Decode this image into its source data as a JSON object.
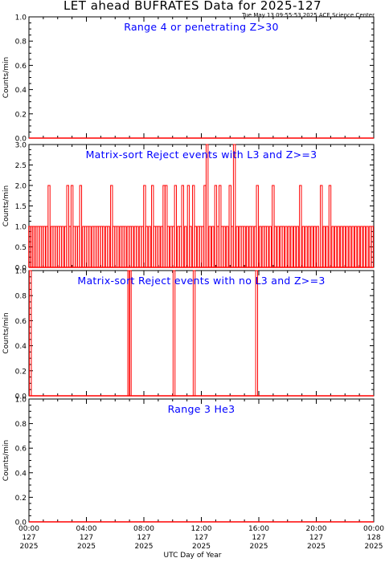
{
  "header": {
    "title": "LET ahead BUFRATES Data for 2025-127",
    "timestamp": "Tue May 13 09:55:53 2025 ACE Science Center"
  },
  "xaxis_label": "UTC Day of Year",
  "colors": {
    "data": "#ff0000",
    "panel_title": "#0000ff",
    "axes": "#000000"
  },
  "chart_data": [
    {
      "type": "line",
      "title": "Range 4 or  penetrating Z>30",
      "ylabel": "Counts/min",
      "ylim": [
        0,
        1.0
      ],
      "yticks": [
        "0.0",
        "0.2",
        "0.4",
        "0.6",
        "0.8",
        "1.0"
      ],
      "yticks_vals": [
        0,
        0.2,
        0.4,
        0.6,
        0.8,
        1.0
      ],
      "xlim": [
        0,
        24
      ],
      "series": [
        {
          "x": [
            0,
            24
          ],
          "y": [
            0,
            0
          ]
        }
      ]
    },
    {
      "type": "line",
      "title": "Matrix-sort Reject events with L3 and Z>=3",
      "ylabel": "Counts/min",
      "ylim": [
        0,
        3.0
      ],
      "yticks": [
        "0.0",
        "0.5",
        "1.0",
        "1.5",
        "2.0",
        "2.5",
        "3.0"
      ],
      "yticks_vals": [
        0,
        0.5,
        1.0,
        1.5,
        2.0,
        2.5,
        3.0
      ],
      "xlim": [
        0,
        24
      ],
      "baseline_value": 0,
      "spikes": [
        {
          "x": 0.05,
          "y": 1
        },
        {
          "x": 0.17,
          "y": 1
        },
        {
          "x": 0.3,
          "y": 1
        },
        {
          "x": 0.42,
          "y": 1
        },
        {
          "x": 0.55,
          "y": 1
        },
        {
          "x": 0.68,
          "y": 1
        },
        {
          "x": 0.82,
          "y": 1
        },
        {
          "x": 0.95,
          "y": 1
        },
        {
          "x": 1.08,
          "y": 1
        },
        {
          "x": 1.25,
          "y": 1
        },
        {
          "x": 1.4,
          "y": 2
        },
        {
          "x": 1.6,
          "y": 1
        },
        {
          "x": 1.75,
          "y": 1
        },
        {
          "x": 1.9,
          "y": 1
        },
        {
          "x": 2.05,
          "y": 1
        },
        {
          "x": 2.2,
          "y": 1
        },
        {
          "x": 2.35,
          "y": 1
        },
        {
          "x": 2.55,
          "y": 1
        },
        {
          "x": 2.7,
          "y": 2
        },
        {
          "x": 2.85,
          "y": 1
        },
        {
          "x": 3.0,
          "y": 2
        },
        {
          "x": 3.15,
          "y": 1
        },
        {
          "x": 3.3,
          "y": 1
        },
        {
          "x": 3.45,
          "y": 1
        },
        {
          "x": 3.6,
          "y": 2
        },
        {
          "x": 3.8,
          "y": 1
        },
        {
          "x": 3.95,
          "y": 1
        },
        {
          "x": 4.1,
          "y": 1
        },
        {
          "x": 4.25,
          "y": 1
        },
        {
          "x": 4.45,
          "y": 1
        },
        {
          "x": 4.6,
          "y": 1
        },
        {
          "x": 4.75,
          "y": 1
        },
        {
          "x": 4.9,
          "y": 1
        },
        {
          "x": 5.05,
          "y": 1
        },
        {
          "x": 5.2,
          "y": 1
        },
        {
          "x": 5.4,
          "y": 1
        },
        {
          "x": 5.55,
          "y": 1
        },
        {
          "x": 5.75,
          "y": 2
        },
        {
          "x": 5.9,
          "y": 1
        },
        {
          "x": 6.05,
          "y": 1
        },
        {
          "x": 6.2,
          "y": 1
        },
        {
          "x": 6.4,
          "y": 1
        },
        {
          "x": 6.55,
          "y": 1
        },
        {
          "x": 6.7,
          "y": 1
        },
        {
          "x": 6.9,
          "y": 1
        },
        {
          "x": 7.05,
          "y": 1
        },
        {
          "x": 7.2,
          "y": 1
        },
        {
          "x": 7.4,
          "y": 1
        },
        {
          "x": 7.55,
          "y": 1
        },
        {
          "x": 7.75,
          "y": 1
        },
        {
          "x": 7.9,
          "y": 1
        },
        {
          "x": 8.05,
          "y": 2
        },
        {
          "x": 8.2,
          "y": 1
        },
        {
          "x": 8.4,
          "y": 1
        },
        {
          "x": 8.6,
          "y": 2
        },
        {
          "x": 8.75,
          "y": 1
        },
        {
          "x": 8.9,
          "y": 1
        },
        {
          "x": 9.05,
          "y": 1
        },
        {
          "x": 9.25,
          "y": 1
        },
        {
          "x": 9.4,
          "y": 2
        },
        {
          "x": 9.55,
          "y": 2
        },
        {
          "x": 9.7,
          "y": 1
        },
        {
          "x": 9.9,
          "y": 1
        },
        {
          "x": 10.05,
          "y": 1
        },
        {
          "x": 10.2,
          "y": 2
        },
        {
          "x": 10.4,
          "y": 1
        },
        {
          "x": 10.55,
          "y": 1
        },
        {
          "x": 10.7,
          "y": 2
        },
        {
          "x": 10.9,
          "y": 1
        },
        {
          "x": 11.1,
          "y": 2
        },
        {
          "x": 11.25,
          "y": 1
        },
        {
          "x": 11.45,
          "y": 2
        },
        {
          "x": 11.6,
          "y": 1
        },
        {
          "x": 11.8,
          "y": 1
        },
        {
          "x": 11.95,
          "y": 1
        },
        {
          "x": 12.1,
          "y": 1
        },
        {
          "x": 12.25,
          "y": 2
        },
        {
          "x": 12.4,
          "y": 3
        },
        {
          "x": 12.6,
          "y": 1
        },
        {
          "x": 12.8,
          "y": 1
        },
        {
          "x": 13.0,
          "y": 2
        },
        {
          "x": 13.15,
          "y": 1
        },
        {
          "x": 13.3,
          "y": 2
        },
        {
          "x": 13.45,
          "y": 1
        },
        {
          "x": 13.6,
          "y": 1
        },
        {
          "x": 13.8,
          "y": 1
        },
        {
          "x": 14.0,
          "y": 2
        },
        {
          "x": 14.15,
          "y": 1
        },
        {
          "x": 14.3,
          "y": 3
        },
        {
          "x": 14.5,
          "y": 1
        },
        {
          "x": 14.7,
          "y": 1
        },
        {
          "x": 14.85,
          "y": 1
        },
        {
          "x": 15.0,
          "y": 1
        },
        {
          "x": 15.2,
          "y": 1
        },
        {
          "x": 15.4,
          "y": 1
        },
        {
          "x": 15.55,
          "y": 1
        },
        {
          "x": 15.75,
          "y": 1
        },
        {
          "x": 15.9,
          "y": 2
        },
        {
          "x": 16.1,
          "y": 1
        },
        {
          "x": 16.3,
          "y": 1
        },
        {
          "x": 16.45,
          "y": 1
        },
        {
          "x": 16.6,
          "y": 1
        },
        {
          "x": 16.8,
          "y": 1
        },
        {
          "x": 17.0,
          "y": 2
        },
        {
          "x": 17.15,
          "y": 1
        },
        {
          "x": 17.35,
          "y": 1
        },
        {
          "x": 17.55,
          "y": 1
        },
        {
          "x": 17.7,
          "y": 1
        },
        {
          "x": 17.9,
          "y": 1
        },
        {
          "x": 18.1,
          "y": 1
        },
        {
          "x": 18.3,
          "y": 1
        },
        {
          "x": 18.5,
          "y": 1
        },
        {
          "x": 18.7,
          "y": 1
        },
        {
          "x": 18.9,
          "y": 2
        },
        {
          "x": 19.1,
          "y": 1
        },
        {
          "x": 19.3,
          "y": 1
        },
        {
          "x": 19.5,
          "y": 1
        },
        {
          "x": 19.7,
          "y": 1
        },
        {
          "x": 19.9,
          "y": 1
        },
        {
          "x": 20.1,
          "y": 1
        },
        {
          "x": 20.35,
          "y": 2
        },
        {
          "x": 20.55,
          "y": 1
        },
        {
          "x": 20.75,
          "y": 1
        },
        {
          "x": 20.95,
          "y": 2
        },
        {
          "x": 21.15,
          "y": 1
        },
        {
          "x": 21.35,
          "y": 1
        },
        {
          "x": 21.55,
          "y": 1
        },
        {
          "x": 21.75,
          "y": 1
        },
        {
          "x": 21.95,
          "y": 1
        },
        {
          "x": 22.15,
          "y": 1
        },
        {
          "x": 22.35,
          "y": 1
        },
        {
          "x": 22.55,
          "y": 1
        },
        {
          "x": 22.75,
          "y": 1
        },
        {
          "x": 22.95,
          "y": 1
        },
        {
          "x": 23.15,
          "y": 1
        },
        {
          "x": 23.35,
          "y": 1
        },
        {
          "x": 23.55,
          "y": 1
        },
        {
          "x": 23.75,
          "y": 1
        },
        {
          "x": 23.9,
          "y": 1
        }
      ]
    },
    {
      "type": "line",
      "title": "Matrix-sort Reject events with no L3 and Z>=3",
      "ylabel": "Counts/min",
      "ylim": [
        0,
        1.0
      ],
      "yticks": [
        "0.0",
        "0.2",
        "0.4",
        "0.6",
        "0.8",
        "1.0"
      ],
      "yticks_vals": [
        0,
        0.2,
        0.4,
        0.6,
        0.8,
        1.0
      ],
      "xlim": [
        0,
        24
      ],
      "baseline_value": 0,
      "spikes": [
        {
          "x": 0.1,
          "y": 1
        },
        {
          "x": 6.95,
          "y": 1
        },
        {
          "x": 7.05,
          "y": 1
        },
        {
          "x": 10.1,
          "y": 1
        },
        {
          "x": 11.5,
          "y": 1
        },
        {
          "x": 15.85,
          "y": 1
        }
      ]
    },
    {
      "type": "line",
      "title": "Range 3 He3",
      "ylabel": "Counts/min",
      "ylim": [
        0,
        1.0
      ],
      "yticks": [
        "0.0",
        "0.2",
        "0.4",
        "0.6",
        "0.8",
        "1.0"
      ],
      "yticks_vals": [
        0,
        0.2,
        0.4,
        0.6,
        0.8,
        1.0
      ],
      "xlim": [
        0,
        24
      ],
      "series": [
        {
          "x": [
            0,
            24
          ],
          "y": [
            0,
            0
          ]
        }
      ]
    }
  ],
  "xticks": [
    {
      "hour": 0,
      "time": "00:00",
      "doy": "127",
      "year": "2025"
    },
    {
      "hour": 4,
      "time": "04:00",
      "doy": "127",
      "year": "2025"
    },
    {
      "hour": 8,
      "time": "08:00",
      "doy": "127",
      "year": "2025"
    },
    {
      "hour": 12,
      "time": "12:00",
      "doy": "127",
      "year": "2025"
    },
    {
      "hour": 16,
      "time": "16:00",
      "doy": "127",
      "year": "2025"
    },
    {
      "hour": 20,
      "time": "20:00",
      "doy": "127",
      "year": "2025"
    },
    {
      "hour": 24,
      "time": "00:00",
      "doy": "128",
      "year": "2025"
    }
  ]
}
